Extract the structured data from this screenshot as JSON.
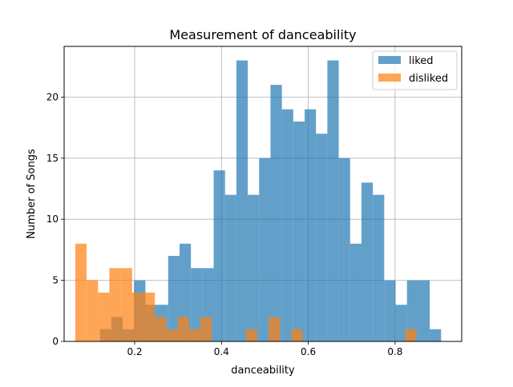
{
  "chart_data": {
    "type": "histogram",
    "title": "Measurement of danceability",
    "xlabel": "danceability",
    "ylabel": "Number of Songs",
    "xlim": [
      0.0375,
      0.9535
    ],
    "ylim": [
      0,
      24.15
    ],
    "xticks": [
      0.2,
      0.4,
      0.6,
      0.8
    ],
    "xtick_labels": [
      "0.2",
      "0.4",
      "0.6",
      "0.8"
    ],
    "yticks": [
      0,
      5,
      10,
      15,
      20
    ],
    "ytick_labels": [
      "0",
      "5",
      "10",
      "15",
      "20"
    ],
    "grid": true,
    "legend_position": "upper right",
    "series": [
      {
        "name": "liked",
        "color": "#1f77b4",
        "alpha": 0.7,
        "bin_width": 0.0262,
        "bin_starts": [
          0.12,
          0.1462,
          0.1724,
          0.1986,
          0.2248,
          0.251,
          0.2772,
          0.3034,
          0.3296,
          0.3558,
          0.382,
          0.4082,
          0.4344,
          0.4606,
          0.4868,
          0.513,
          0.5392,
          0.5654,
          0.5916,
          0.6178,
          0.644,
          0.6702,
          0.6964,
          0.7226,
          0.7488,
          0.775,
          0.8012,
          0.8274,
          0.8536,
          0.8798,
          0.906
        ],
        "values": [
          1,
          2,
          1,
          5,
          3,
          3,
          7,
          8,
          6,
          6,
          14,
          12,
          23,
          12,
          15,
          21,
          19,
          18,
          19,
          17,
          23,
          15,
          8,
          13,
          12,
          5,
          3,
          5,
          5,
          1,
          0
        ]
      },
      {
        "name": "disliked",
        "color": "#ff7f0e",
        "alpha": 0.7,
        "bin_width": 0.0262,
        "bin_starts": [
          0.0632,
          0.0894,
          0.1156,
          0.1418,
          0.168,
          0.1942,
          0.2204,
          0.2466,
          0.2728,
          0.299,
          0.3252,
          0.3514,
          0.3776,
          0.4038,
          0.43,
          0.4562,
          0.4824,
          0.5086,
          0.5348,
          0.561,
          0.5872,
          0.6134,
          0.6396,
          0.6658,
          0.692,
          0.7182,
          0.7444,
          0.7706,
          0.7968,
          0.823
        ],
        "values": [
          8,
          5,
          4,
          6,
          6,
          4,
          4,
          2,
          1,
          2,
          1,
          2,
          0,
          0,
          0,
          1,
          0,
          2,
          0,
          1,
          0,
          0,
          0,
          0,
          0,
          0,
          0,
          0,
          0,
          1
        ]
      }
    ]
  }
}
